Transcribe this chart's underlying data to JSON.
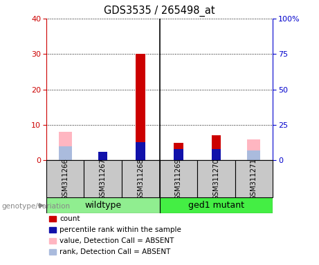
{
  "title": "GDS3535 / 265498_at",
  "samples": [
    "GSM311266",
    "GSM311267",
    "GSM311268",
    "GSM311269",
    "GSM311270",
    "GSM311271"
  ],
  "count_values": [
    0,
    1,
    30,
    5,
    7,
    0
  ],
  "percentile_values": [
    0,
    6,
    13,
    8,
    8,
    0
  ],
  "absent_value_values": [
    8,
    0,
    0,
    0,
    0,
    6
  ],
  "absent_rank_values": [
    10,
    0,
    0,
    0,
    0,
    7
  ],
  "ylim_left": [
    0,
    40
  ],
  "ylim_right": [
    0,
    100
  ],
  "yticks_left": [
    0,
    10,
    20,
    30,
    40
  ],
  "yticks_right": [
    0,
    25,
    50,
    75,
    100
  ],
  "yticklabels_right": [
    "0",
    "25",
    "50",
    "75",
    "100%"
  ],
  "colors": {
    "count": "#CC0000",
    "percentile": "#1111AA",
    "absent_value": "#FFB6C1",
    "absent_rank": "#AABBDD",
    "wildtype_bg": "#90EE90",
    "mutant_bg": "#44EE44",
    "sample_bg": "#C8C8C8",
    "left_axis": "#CC0000",
    "right_axis": "#0000CC",
    "plot_bg": "#FFFFFF"
  },
  "group_split": 3,
  "bar_width": 0.25,
  "wide_bar_width": 0.35,
  "genotype_label": "genotype/variation",
  "legend_items": [
    {
      "label": "count",
      "color": "#CC0000"
    },
    {
      "label": "percentile rank within the sample",
      "color": "#1111AA"
    },
    {
      "label": "value, Detection Call = ABSENT",
      "color": "#FFB6C1"
    },
    {
      "label": "rank, Detection Call = ABSENT",
      "color": "#AABBDD"
    }
  ]
}
